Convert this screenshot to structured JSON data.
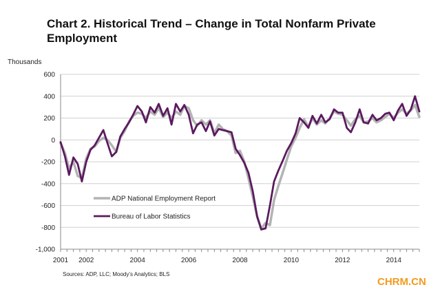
{
  "title": "Chart 2. Historical Trend – Change in Total Nonfarm Private Employment",
  "watermark": "CHRM.CN",
  "chart_data": {
    "type": "line",
    "title": "Chart 2. Historical Trend – Change in Total Nonfarm Private Employment",
    "ylabel": "Thousands",
    "xlabel": "",
    "source": "Sources: ADP, LLC; Moody’s Analytics; BLS",
    "ylim": [
      -1000,
      600
    ],
    "yticks": [
      600,
      400,
      200,
      0,
      -200,
      -400,
      -600,
      -800,
      -1000
    ],
    "ytick_labels": [
      "600",
      "400",
      "200",
      "0",
      "-200",
      "-400",
      "-600",
      "-800",
      "-1,000"
    ],
    "xlim": [
      2001.0,
      2015.0
    ],
    "xticks": [
      2001,
      2002,
      2004,
      2006,
      2008,
      2010,
      2012,
      2014
    ],
    "xtick_labels": [
      "2001",
      "2002",
      "2004",
      "2006",
      "2008",
      "2010",
      "2012",
      "2014"
    ],
    "grid": "horizontal",
    "legend_position": "lower-left",
    "x": [
      2001.0,
      2001.17,
      2001.33,
      2001.5,
      2001.67,
      2001.83,
      2002.0,
      2002.17,
      2002.33,
      2002.5,
      2002.67,
      2002.83,
      2003.0,
      2003.17,
      2003.33,
      2003.5,
      2003.67,
      2003.83,
      2004.0,
      2004.17,
      2004.33,
      2004.5,
      2004.67,
      2004.83,
      2005.0,
      2005.17,
      2005.33,
      2005.5,
      2005.67,
      2005.83,
      2006.0,
      2006.17,
      2006.33,
      2006.5,
      2006.67,
      2006.83,
      2007.0,
      2007.17,
      2007.33,
      2007.5,
      2007.67,
      2007.83,
      2008.0,
      2008.17,
      2008.33,
      2008.5,
      2008.67,
      2008.83,
      2009.0,
      2009.17,
      2009.33,
      2009.5,
      2009.67,
      2009.83,
      2010.0,
      2010.17,
      2010.33,
      2010.5,
      2010.67,
      2010.83,
      2011.0,
      2011.17,
      2011.33,
      2011.5,
      2011.67,
      2011.83,
      2012.0,
      2012.17,
      2012.33,
      2012.5,
      2012.67,
      2012.83,
      2013.0,
      2013.17,
      2013.33,
      2013.5,
      2013.67,
      2013.83,
      2014.0,
      2014.17,
      2014.33,
      2014.5,
      2014.67,
      2014.83,
      2015.0
    ],
    "series": [
      {
        "name": "ADP National Employment Report",
        "color": "#b3b3b3",
        "values": [
          -30,
          -120,
          -260,
          -200,
          -330,
          -350,
          -170,
          -80,
          -60,
          -10,
          20,
          0,
          -50,
          -110,
          20,
          80,
          170,
          220,
          250,
          240,
          200,
          260,
          230,
          290,
          210,
          250,
          200,
          260,
          230,
          310,
          290,
          180,
          130,
          180,
          140,
          180,
          60,
          140,
          100,
          80,
          40,
          -120,
          -100,
          -200,
          -350,
          -520,
          -700,
          -810,
          -760,
          -780,
          -550,
          -420,
          -300,
          -180,
          -60,
          20,
          110,
          190,
          120,
          200,
          140,
          180,
          150,
          200,
          260,
          240,
          230,
          180,
          130,
          190,
          220,
          160,
          170,
          200,
          160,
          180,
          210,
          240,
          200,
          250,
          280,
          240,
          270,
          320,
          210
        ]
      },
      {
        "name": "Bureau of Labor Statistics",
        "color": "#5b1a5f",
        "values": [
          -20,
          -150,
          -320,
          -160,
          -220,
          -380,
          -200,
          -90,
          -50,
          20,
          90,
          -30,
          -150,
          -110,
          30,
          100,
          160,
          230,
          310,
          260,
          160,
          300,
          250,
          330,
          220,
          290,
          140,
          330,
          260,
          320,
          230,
          60,
          140,
          160,
          80,
          170,
          40,
          100,
          90,
          80,
          70,
          -80,
          -140,
          -210,
          -300,
          -470,
          -700,
          -820,
          -810,
          -600,
          -380,
          -280,
          -190,
          -100,
          -30,
          60,
          200,
          160,
          110,
          220,
          150,
          230,
          160,
          190,
          280,
          250,
          250,
          110,
          70,
          160,
          280,
          160,
          150,
          230,
          180,
          200,
          240,
          250,
          180,
          270,
          330,
          220,
          280,
          400,
          260
        ]
      }
    ]
  }
}
